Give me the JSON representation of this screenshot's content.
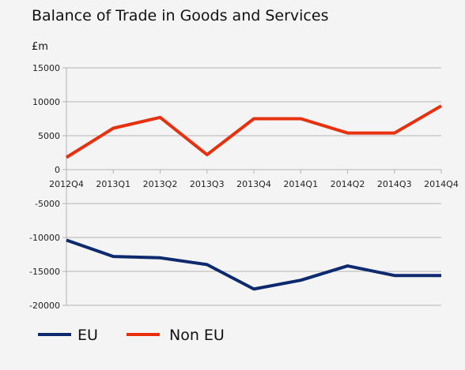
{
  "chart_data": {
    "type": "line",
    "title": "Balance of Trade in Goods and Services",
    "ylabel": "£m",
    "xlabel": "",
    "ylim": [
      -20000,
      15000
    ],
    "yticks": [
      15000,
      10000,
      5000,
      0,
      -5000,
      -10000,
      -15000,
      -20000
    ],
    "categories": [
      "2012Q4",
      "2013Q1",
      "2013Q2",
      "2013Q3",
      "2013Q4",
      "2014Q1",
      "2014Q2",
      "2014Q3",
      "2014Q4"
    ],
    "grid": "horizontal",
    "legend_position": "bottom-left",
    "series": [
      {
        "name": "EU",
        "color": "#0d2a6e",
        "values": [
          -10400,
          -12800,
          -13000,
          -14000,
          -17600,
          -16300,
          -14200,
          -15600,
          -15600
        ]
      },
      {
        "name": "Non EU",
        "color": "#e8300f",
        "values": [
          1800,
          6100,
          7700,
          2200,
          7500,
          7500,
          5400,
          5400,
          9400
        ]
      }
    ]
  }
}
